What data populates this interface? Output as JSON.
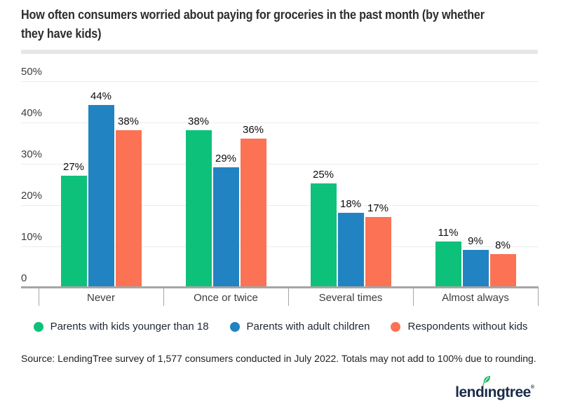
{
  "title": {
    "line1": "How often consumers worried about paying for groceries in the past month (by whether",
    "line2": "they have kids)"
  },
  "chart_data": {
    "type": "bar",
    "title": "How often consumers worried about paying for groceries in the past month (by whether they have kids)",
    "categories": [
      "Never",
      "Once or twice",
      "Several times",
      "Almost always"
    ],
    "series": [
      {
        "name": "Parents with kids younger than 18",
        "color": "#0ec17a",
        "values": [
          27,
          38,
          25,
          11
        ]
      },
      {
        "name": "Parents with adult children",
        "color": "#2283c3",
        "values": [
          44,
          29,
          18,
          9
        ]
      },
      {
        "name": "Respondents without kids",
        "color": "#fb7254",
        "values": [
          38,
          36,
          17,
          8
        ]
      }
    ],
    "value_suffix": "%",
    "xlabel": "",
    "ylabel": "",
    "ylim": [
      0,
      50
    ],
    "yticks": [
      {
        "label": "50%",
        "value": 50
      },
      {
        "label": "40%",
        "value": 40
      },
      {
        "label": "30%",
        "value": 30
      },
      {
        "label": "20%",
        "value": 20
      },
      {
        "label": "10%",
        "value": 10
      },
      {
        "label": "0",
        "value": 0
      }
    ],
    "grid": true,
    "legend_position": "bottom"
  },
  "source": "Source: LendingTree survey of 1,577 consumers conducted in July 2022. Totals may not add to 100% due to rounding.",
  "logo": {
    "part1": "lend",
    "i": "ı",
    "part2": "ngtree",
    "mark": "®"
  },
  "colors": {
    "logo_navy": "#1a2b49",
    "leaf_green": "#26b562",
    "axis_gray": "#a6a6a6",
    "grid_gray": "#ececec"
  }
}
